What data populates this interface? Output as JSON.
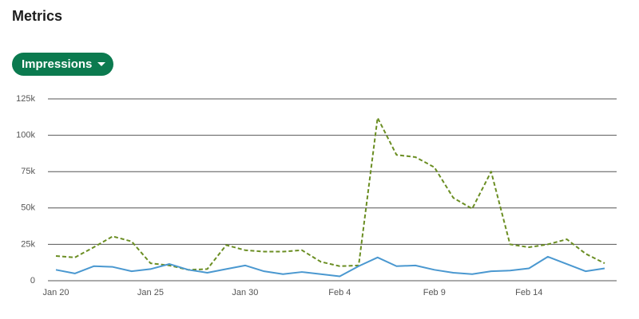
{
  "header": {
    "title": "Metrics"
  },
  "dropdown": {
    "label": "Impressions"
  },
  "chart_data": {
    "type": "line",
    "categories": [
      "Jan 20",
      null,
      null,
      null,
      null,
      "Jan 25",
      null,
      null,
      null,
      null,
      "Jan 30",
      null,
      null,
      null,
      null,
      "Feb 4",
      null,
      null,
      null,
      null,
      "Feb 9",
      null,
      null,
      null,
      null,
      "Feb 14",
      null,
      null,
      null,
      null
    ],
    "series": [
      {
        "color": "#6b8e23",
        "dashed": true,
        "values": [
          17000,
          16000,
          23000,
          30500,
          27000,
          12000,
          10500,
          7500,
          8000,
          24500,
          21000,
          20000,
          20000,
          21000,
          13000,
          10000,
          10500,
          112000,
          86500,
          85000,
          78000,
          57000,
          49500,
          75000,
          25000,
          23000,
          25000,
          28500,
          18500,
          12000
        ]
      },
      {
        "color": "#4a98d0",
        "dashed": false,
        "values": [
          7500,
          5000,
          10000,
          9500,
          6500,
          8000,
          11500,
          7500,
          5500,
          8000,
          10500,
          6500,
          4500,
          6000,
          4500,
          3000,
          10000,
          16000,
          10000,
          10500,
          7500,
          5500,
          4500,
          6500,
          7000,
          8500,
          16500,
          11500,
          6500,
          8500
        ]
      }
    ],
    "ylim": [
      0,
      125000
    ],
    "yticks": [
      0,
      {
        "value": 25000,
        "label": "25k"
      },
      {
        "value": 50000,
        "label": "50k"
      },
      {
        "value": 75000,
        "label": "75k"
      },
      {
        "value": 100000,
        "label": "100k"
      },
      {
        "value": 125000,
        "label": "125k"
      }
    ],
    "grid": true
  }
}
